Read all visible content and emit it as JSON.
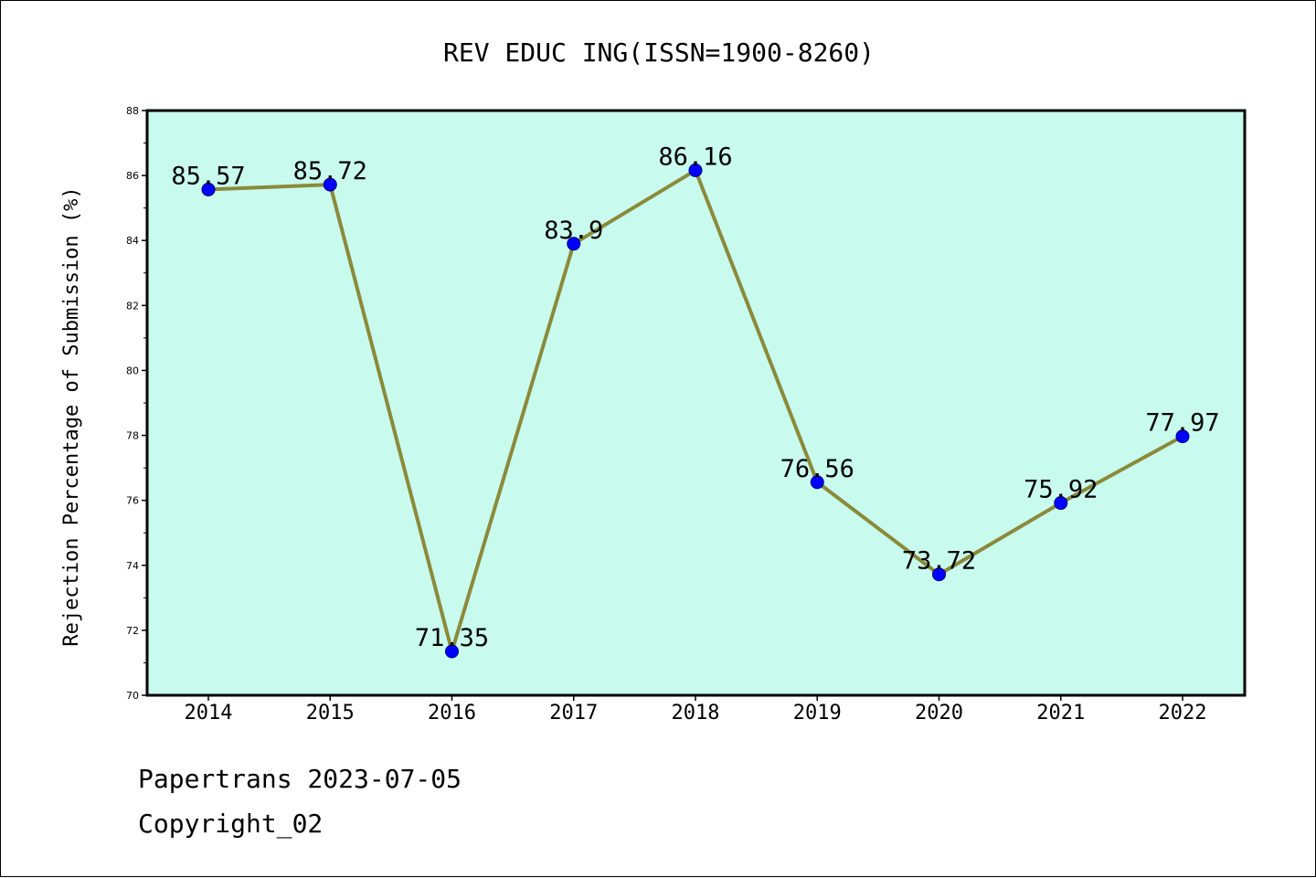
{
  "chart_data": {
    "type": "line",
    "title": "REV EDUC ING(ISSN=1900-8260)",
    "xlabel": "",
    "ylabel": "Rejection Percentage of Submission (%)",
    "categories": [
      "2014",
      "2015",
      "2016",
      "2017",
      "2018",
      "2019",
      "2020",
      "2021",
      "2022"
    ],
    "series": [
      {
        "values": [
          85.57,
          85.72,
          71.35,
          83.9,
          86.16,
          76.56,
          73.72,
          75.92,
          77.97
        ],
        "labels": [
          "85.57",
          "85.72",
          "71.35",
          "83.9",
          "86.16",
          "76.56",
          "73.72",
          "75.92",
          "77.97"
        ]
      }
    ],
    "ylim": [
      70,
      88
    ],
    "yticks": [
      "70",
      "72",
      "74",
      "76",
      "78",
      "80",
      "82",
      "84",
      "86",
      "88"
    ],
    "grid": false,
    "legend": "none"
  },
  "colors": {
    "plot_background": "#c8fbee",
    "line": "#8b8a3a",
    "marker": "#0000ff",
    "axis": "#000000"
  },
  "footer": {
    "line1": "Papertrans 2023-07-05",
    "line2": "Copyright_02"
  }
}
